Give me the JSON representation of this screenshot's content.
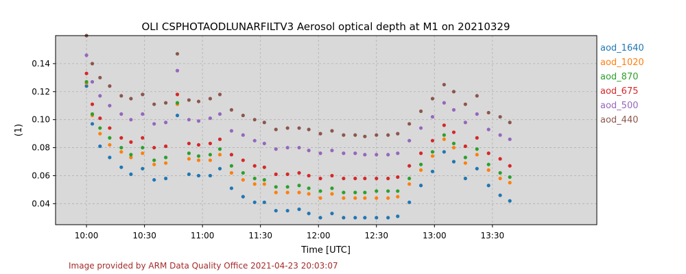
{
  "chart_data": {
    "type": "scatter",
    "title": "OLI CSPHOTAODLUNARFILTV3 Aerosol optical depth at M1 on 20210329",
    "xlabel": "Time [UTC]",
    "ylabel": "(1)",
    "x_unit": "time of day (UTC)",
    "xlim": [
      "09:44",
      "14:24"
    ],
    "ylim": [
      0.025,
      0.16
    ],
    "x_ticks": [
      "10:00",
      "10:30",
      "11:00",
      "11:30",
      "12:00",
      "12:30",
      "13:00",
      "13:30"
    ],
    "y_ticks": [
      "0.04",
      "0.06",
      "0.08",
      "0.10",
      "0.12",
      "0.14"
    ],
    "grid": true,
    "background": "#d9d9d9",
    "legend_position": "outside-right",
    "credit": "Image provided by ARM Data Quality Office 2021-04-23 20:03:07",
    "credit_color": "#a52a2a",
    "x": [
      "10:00",
      "10:03",
      "10:07",
      "10:12",
      "10:18",
      "10:23",
      "10:29",
      "10:35",
      "10:41",
      "10:47",
      "10:53",
      "10:58",
      "11:04",
      "11:09",
      "11:15",
      "11:21",
      "11:27",
      "11:32",
      "11:38",
      "11:44",
      "11:50",
      "11:55",
      "12:01",
      "12:07",
      "12:13",
      "12:19",
      "12:24",
      "12:30",
      "12:36",
      "12:41",
      "12:47",
      "12:53",
      "12:59",
      "13:05",
      "13:10",
      "13:16",
      "13:22",
      "13:28",
      "13:34",
      "13:39"
    ],
    "series": [
      {
        "name": "aod_1640",
        "color": "#1f77b4",
        "values": [
          0.124,
          0.097,
          0.081,
          0.073,
          0.066,
          0.061,
          0.065,
          0.057,
          0.058,
          0.103,
          0.061,
          0.06,
          0.06,
          0.065,
          0.051,
          0.045,
          0.041,
          0.041,
          0.035,
          0.035,
          0.036,
          0.033,
          0.03,
          0.033,
          0.03,
          0.03,
          0.03,
          0.03,
          0.03,
          0.031,
          0.041,
          0.053,
          0.063,
          0.077,
          0.07,
          0.058,
          0.065,
          0.053,
          0.046,
          0.042
        ]
      },
      {
        "name": "aod_1020",
        "color": "#ff7f0e",
        "values": [
          0.126,
          0.103,
          0.09,
          0.082,
          0.077,
          0.073,
          0.076,
          0.068,
          0.069,
          0.111,
          0.072,
          0.071,
          0.071,
          0.075,
          0.062,
          0.057,
          0.054,
          0.054,
          0.048,
          0.048,
          0.048,
          0.047,
          0.044,
          0.047,
          0.044,
          0.044,
          0.044,
          0.044,
          0.044,
          0.045,
          0.054,
          0.064,
          0.074,
          0.086,
          0.08,
          0.069,
          0.075,
          0.064,
          0.058,
          0.055
        ]
      },
      {
        "name": "aod_870",
        "color": "#2ca02c",
        "values": [
          0.127,
          0.104,
          0.094,
          0.087,
          0.08,
          0.075,
          0.08,
          0.071,
          0.073,
          0.112,
          0.076,
          0.074,
          0.075,
          0.079,
          0.067,
          0.062,
          0.058,
          0.057,
          0.052,
          0.052,
          0.053,
          0.051,
          0.049,
          0.051,
          0.048,
          0.048,
          0.048,
          0.049,
          0.049,
          0.049,
          0.058,
          0.068,
          0.077,
          0.089,
          0.083,
          0.073,
          0.079,
          0.068,
          0.062,
          0.059
        ]
      },
      {
        "name": "aod_675",
        "color": "#d62728",
        "values": [
          0.133,
          0.111,
          0.101,
          0.094,
          0.087,
          0.084,
          0.087,
          0.08,
          0.081,
          0.118,
          0.083,
          0.082,
          0.083,
          0.086,
          0.075,
          0.071,
          0.067,
          0.066,
          0.061,
          0.061,
          0.062,
          0.06,
          0.058,
          0.06,
          0.058,
          0.058,
          0.058,
          0.058,
          0.058,
          0.059,
          0.067,
          0.076,
          0.085,
          0.096,
          0.091,
          0.081,
          0.087,
          0.076,
          0.072,
          0.067
        ]
      },
      {
        "name": "aod_500",
        "color": "#9467bd",
        "values": [
          0.146,
          0.127,
          0.117,
          0.11,
          0.104,
          0.1,
          0.104,
          0.097,
          0.098,
          0.135,
          0.1,
          0.099,
          0.101,
          0.104,
          0.092,
          0.089,
          0.085,
          0.083,
          0.079,
          0.08,
          0.08,
          0.078,
          0.076,
          0.078,
          0.076,
          0.076,
          0.075,
          0.075,
          0.075,
          0.076,
          0.085,
          0.094,
          0.102,
          0.112,
          0.107,
          0.098,
          0.104,
          0.093,
          0.089,
          0.086
        ]
      },
      {
        "name": "aod_440",
        "color": "#8c564b",
        "values": [
          0.16,
          0.14,
          0.13,
          0.124,
          0.117,
          0.115,
          0.118,
          0.111,
          0.112,
          0.147,
          0.114,
          0.113,
          0.115,
          0.118,
          0.107,
          0.103,
          0.1,
          0.098,
          0.093,
          0.094,
          0.094,
          0.093,
          0.09,
          0.092,
          0.089,
          0.089,
          0.088,
          0.089,
          0.089,
          0.09,
          0.097,
          0.106,
          0.115,
          0.125,
          0.12,
          0.111,
          0.117,
          0.105,
          0.102,
          0.098
        ]
      }
    ]
  }
}
